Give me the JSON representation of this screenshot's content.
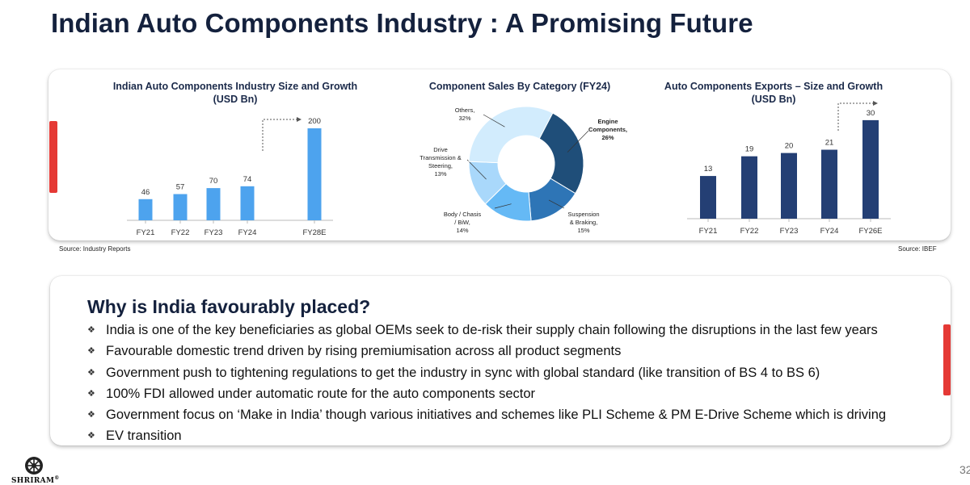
{
  "page_title": "Indian Auto Components Industry : A Promising Future",
  "sources": {
    "left": "Source: Industry Reports",
    "right": "Source: IBEF"
  },
  "chart_data": [
    {
      "type": "bar",
      "title": "Indian Auto Components Industry Size and Growth",
      "subtitle": "(USD Bn)",
      "categories": [
        "FY21",
        "FY22",
        "FY23",
        "FY24",
        "FY28E"
      ],
      "values": [
        46,
        57,
        70,
        74,
        200
      ],
      "color": "#4da3ee",
      "annotation": "dashed growth arrow from FY24 to FY28E"
    },
    {
      "type": "pie",
      "title": "Component Sales By Category (FY24)",
      "donut": true,
      "slices": [
        {
          "label": "Engine Components,",
          "label2": "26%",
          "value": 26,
          "color": "#1f4e79"
        },
        {
          "label": "Suspension & Braking,",
          "label2": "15%",
          "value": 15,
          "color": "#2e75b6"
        },
        {
          "label": "Body / Chasis / BiW,",
          "label2": "14%",
          "value": 14,
          "color": "#65b9f5"
        },
        {
          "label": "Drive Transmission & Steering,",
          "label2": "13%",
          "value": 13,
          "color": "#a9d8fb"
        },
        {
          "label": "Others,",
          "label2": "32%",
          "value": 32,
          "color": "#d2ecfd"
        }
      ]
    },
    {
      "type": "bar",
      "title": "Auto Components Exports – Size and Growth",
      "subtitle": "(USD Bn)",
      "categories": [
        "FY21",
        "FY22",
        "FY23",
        "FY24",
        "FY26E"
      ],
      "values": [
        13,
        19,
        20,
        21,
        30
      ],
      "color": "#243f74",
      "annotation": "dashed growth arrow from FY24 to FY26E"
    }
  ],
  "why": {
    "heading": "Why is India favourably placed?",
    "bullet_symbol": "❖",
    "items": [
      "India is one of the key beneficiaries as global OEMs seek to de-risk their supply chain following the disruptions in the last few years",
      "Favourable domestic trend driven by rising premiumisation across all product segments",
      "Government push to tightening regulations to get the industry in sync with global standard (like transition of BS 4 to BS 6)",
      "100% FDI allowed under automatic route for the auto components sector",
      "Government focus on ‘Make in India’ though various initiatives and schemes like PLI Scheme & PM E-Drive Scheme which is driving",
      "EV transition"
    ]
  },
  "footer": {
    "logo_text": "SHRIRAM",
    "registered_mark": "®",
    "page_number": "32"
  }
}
